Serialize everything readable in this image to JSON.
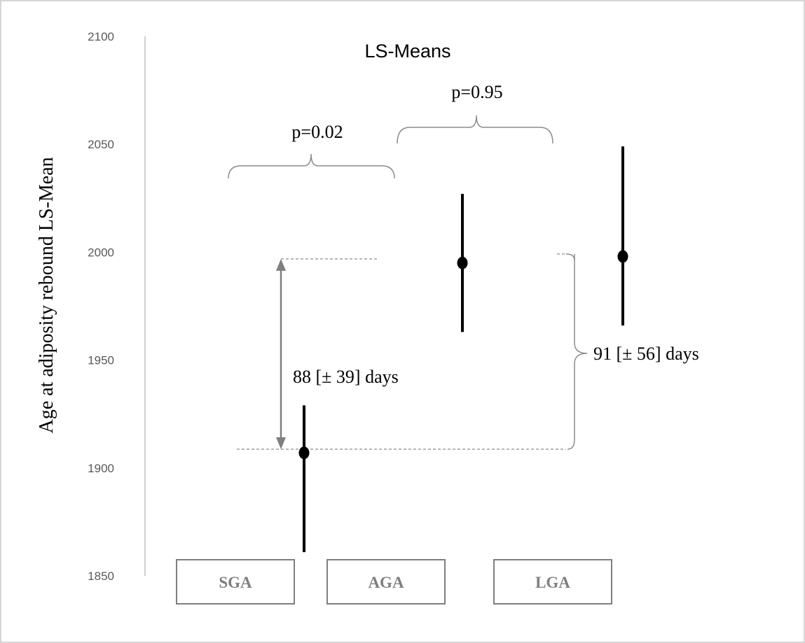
{
  "chart_data": {
    "type": "errorbar",
    "title": "LS-Means",
    "ylabel": "Age at adiposity rebound LS-Mean",
    "xlabel": "",
    "ylim": [
      1850,
      2100
    ],
    "yticks": [
      1850,
      1900,
      1950,
      2000,
      2050,
      2100
    ],
    "categories": [
      "SGA",
      "AGA",
      "LGA"
    ],
    "means": [
      1907,
      1995,
      1998
    ],
    "lower": [
      1861,
      1963,
      1966
    ],
    "upper": [
      1929,
      2027,
      2049
    ],
    "annotations": {
      "p_sga_aga": "p=0.02",
      "p_aga_lga": "p=0.95",
      "diff_sga_aga": "88 [± 39] days",
      "diff_sga_lga": "91 [± 56] days"
    },
    "grid": false,
    "legend": "none"
  }
}
